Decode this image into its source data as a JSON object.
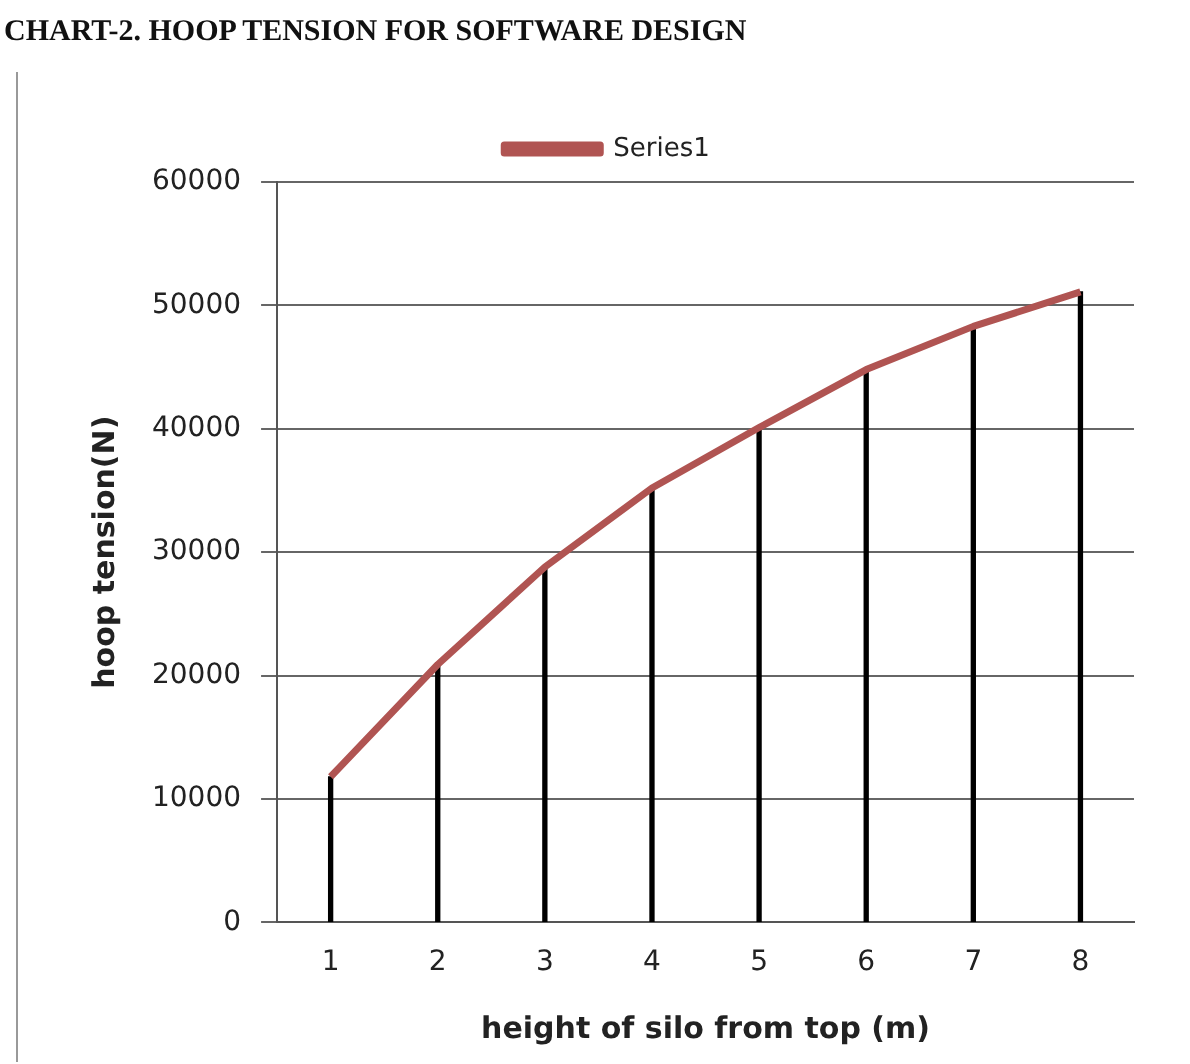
{
  "chart_data": {
    "type": "line",
    "title": "CHART-2. HOOP TENSION FOR SOFTWARE DESIGN",
    "xlabel": "height of silo from top (m)",
    "ylabel": "hoop tension(N)",
    "categories": [
      "1",
      "2",
      "3",
      "4",
      "5",
      "6",
      "7",
      "8"
    ],
    "series": [
      {
        "name": "Series1",
        "color": "#b05452",
        "values": [
          11800,
          20900,
          28800,
          35200,
          40100,
          44800,
          48300,
          51100
        ]
      },
      {
        "type": "bar",
        "color": "#000000",
        "values": [
          11800,
          20900,
          28800,
          35200,
          40100,
          44800,
          48300,
          51100
        ]
      }
    ],
    "ylim": [
      0,
      60000
    ],
    "yticks": [
      0,
      10000,
      20000,
      30000,
      40000,
      50000,
      60000
    ],
    "grid": "y",
    "legend": "top",
    "marker": "none",
    "line_style": "solid"
  }
}
